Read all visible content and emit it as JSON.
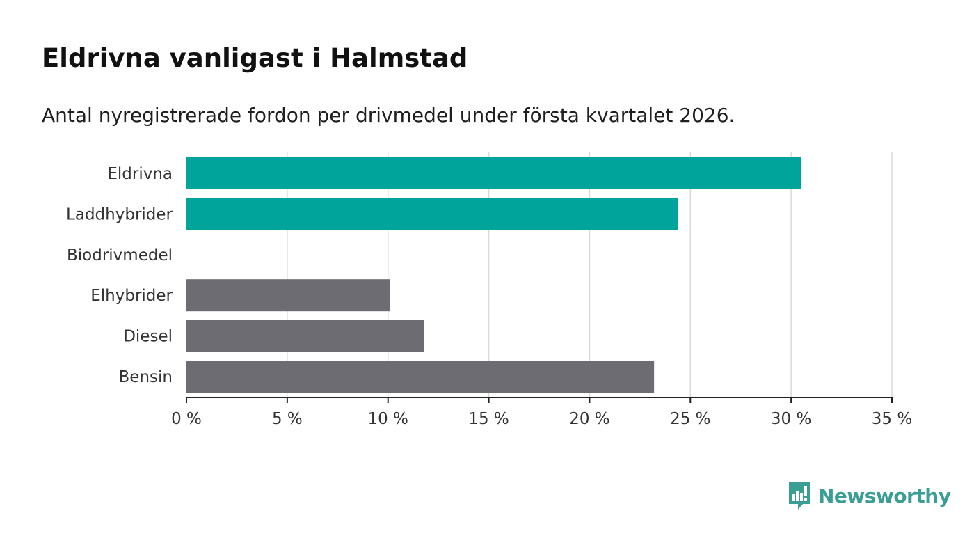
{
  "title": "Eldrivna vanligast i Halmstad",
  "subtitle": "Antal nyregistrerade fordon per drivmedel under första kvartalet 2026.",
  "colors": {
    "highlight": "#00a49a",
    "neutral": "#6d6c72",
    "grid": "#d9d9d9",
    "axis": "#222222",
    "brand": "#3a9e95"
  },
  "chart_data": {
    "type": "bar",
    "orientation": "horizontal",
    "title": "Eldrivna vanligast i Halmstad",
    "subtitle": "Antal nyregistrerade fordon per drivmedel under första kvartalet 2026.",
    "categories": [
      "Eldrivna",
      "Laddhybrider",
      "Biodrivmedel",
      "Elhybrider",
      "Diesel",
      "Bensin"
    ],
    "values": [
      30.5,
      24.4,
      0,
      10.1,
      11.8,
      23.2
    ],
    "bar_colors": [
      "highlight",
      "highlight",
      "highlight",
      "neutral",
      "neutral",
      "neutral"
    ],
    "xlim": [
      0,
      35
    ],
    "xticks": [
      0,
      5,
      10,
      15,
      20,
      25,
      30,
      35
    ],
    "xtick_labels": [
      "0 %",
      "5 %",
      "10 %",
      "15 %",
      "20 %",
      "25 %",
      "30 %",
      "35 %"
    ],
    "xlabel": "",
    "ylabel": "",
    "grid": true,
    "legend": "none"
  },
  "logo": {
    "text": "Newsworthy",
    "icon": "newsworthy-chart-bubble-icon"
  }
}
